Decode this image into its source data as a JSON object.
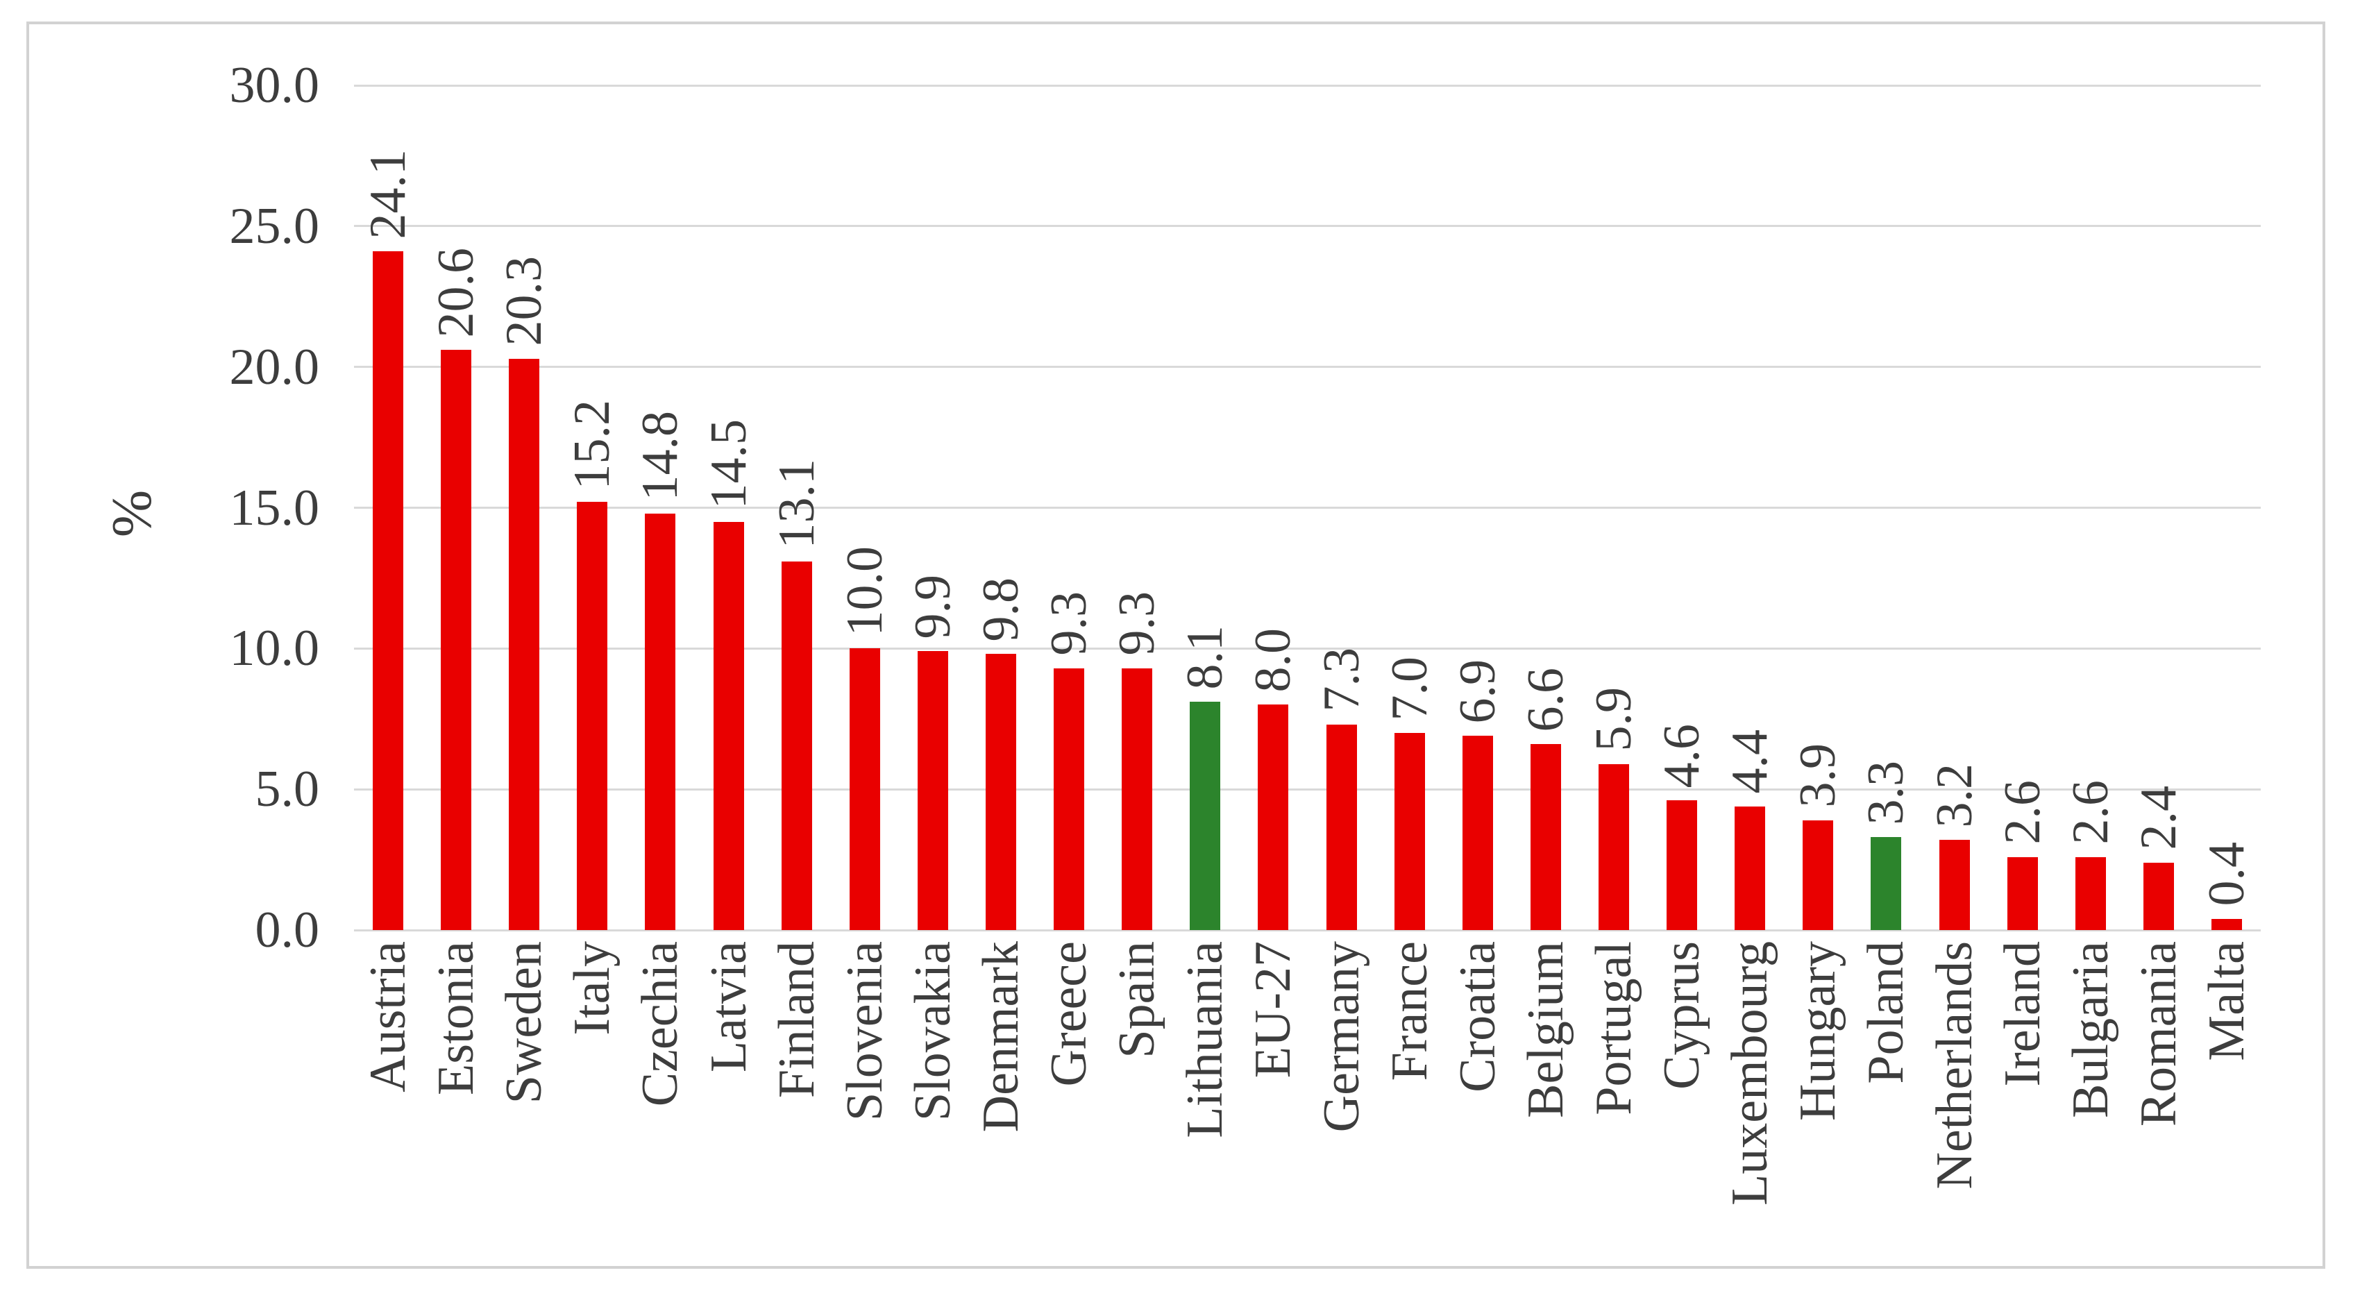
{
  "chart_data": {
    "type": "bar",
    "title": "",
    "xlabel": "",
    "ylabel": "%",
    "ylim": [
      0,
      30
    ],
    "ytick_labels": [
      "0.0",
      "5.0",
      "10.0",
      "15.0",
      "20.0",
      "25.0",
      "30.0"
    ],
    "grid": true,
    "legend": "none",
    "categories": [
      "Austria",
      "Estonia",
      "Sweden",
      "Italy",
      "Czechia",
      "Latvia",
      "Finland",
      "Slovenia",
      "Slovakia",
      "Denmark",
      "Greece",
      "Spain",
      "Lithuania",
      "EU-27",
      "Germany",
      "France",
      "Croatia",
      "Belgium",
      "Portugal",
      "Cyprus",
      "Luxembourg",
      "Hungary",
      "Poland",
      "Netherlands",
      "Ireland",
      "Bulgaria",
      "Romania",
      "Malta"
    ],
    "values": [
      24.1,
      20.6,
      20.3,
      15.2,
      14.8,
      14.5,
      13.1,
      10.0,
      9.9,
      9.8,
      9.3,
      9.3,
      8.1,
      8.0,
      7.3,
      7.0,
      6.9,
      6.6,
      5.9,
      4.6,
      4.4,
      3.9,
      3.3,
      3.2,
      2.6,
      2.6,
      2.4,
      0.4
    ],
    "value_labels": [
      "24.1",
      "20.6",
      "20.3",
      "15.2",
      "14.8",
      "14.5",
      "13.1",
      "10.0",
      "9.9",
      "9.8",
      "9.3",
      "9.3",
      "8.1",
      "8.0",
      "7.3",
      "7.0",
      "6.9",
      "6.6",
      "5.9",
      "4.6",
      "4.4",
      "3.9",
      "3.3",
      "3.2",
      "2.6",
      "2.6",
      "2.4",
      "0.4"
    ],
    "highlighted_categories": [
      "Lithuania",
      "Poland"
    ],
    "colors": {
      "bar_default": "#e90000",
      "bar_highlight": "#2c842c",
      "gridline": "#d9d9d9",
      "text": "#3d3d3d",
      "frame_border": "#d2d2d2",
      "background": "#ffffff"
    }
  }
}
